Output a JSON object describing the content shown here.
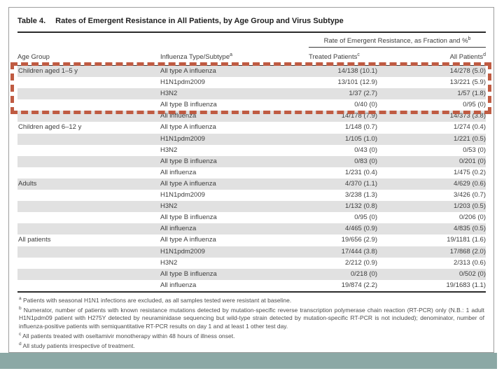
{
  "slide": {
    "accent_band_color": "#8ba8a5",
    "highlight_color": "#bf5b42"
  },
  "table": {
    "title_label": "Table 4.",
    "title_text": "Rates of Emergent Resistance in All Patients, by Age Group and Virus Subtype",
    "spanner": {
      "text": "Rate of Emergent Resistance, as Fraction and %",
      "sup": "b"
    },
    "columns": [
      {
        "label": "Age Group",
        "sup": ""
      },
      {
        "label": "Influenza Type/Subtype",
        "sup": "a"
      },
      {
        "label": "Treated Patients",
        "sup": "c"
      },
      {
        "label": "All Patients",
        "sup": "d"
      }
    ],
    "rows": [
      {
        "age_group": "Children aged 1–5 y",
        "subtype": "All type A influenza",
        "treated": "14/138 (10.1)",
        "all_patients": "14/278 (5.0)"
      },
      {
        "age_group": "",
        "subtype": "H1N1pdm2009",
        "treated": "13/101 (12.9)",
        "all_patients": "13/221 (5.9)"
      },
      {
        "age_group": "",
        "subtype": "H3N2",
        "treated": "1/37 (2.7)",
        "all_patients": "1/57 (1.8)"
      },
      {
        "age_group": "",
        "subtype": "All type B influenza",
        "treated": "0/40 (0)",
        "all_patients": "0/95 (0)"
      },
      {
        "age_group": "",
        "subtype": "All influenza",
        "treated": "14/178 (7.9)",
        "all_patients": "14/373 (3.8)"
      },
      {
        "age_group": "Children aged 6–12 y",
        "subtype": "All type A influenza",
        "treated": "1/148 (0.7)",
        "all_patients": "1/274 (0.4)"
      },
      {
        "age_group": "",
        "subtype": "H1N1pdm2009",
        "treated": "1/105 (1.0)",
        "all_patients": "1/221 (0.5)"
      },
      {
        "age_group": "",
        "subtype": "H3N2",
        "treated": "0/43 (0)",
        "all_patients": "0/53 (0)"
      },
      {
        "age_group": "",
        "subtype": "All type B influenza",
        "treated": "0/83 (0)",
        "all_patients": "0/201 (0)"
      },
      {
        "age_group": "",
        "subtype": "All influenza",
        "treated": "1/231 (0.4)",
        "all_patients": "1/475 (0.2)"
      },
      {
        "age_group": "Adults",
        "subtype": "All type A influenza",
        "treated": "4/370 (1.1)",
        "all_patients": "4/629 (0.6)"
      },
      {
        "age_group": "",
        "subtype": "H1N1pdm2009",
        "treated": "3/238 (1.3)",
        "all_patients": "3/426 (0.7)"
      },
      {
        "age_group": "",
        "subtype": "H3N2",
        "treated": "1/132 (0.8)",
        "all_patients": "1/203 (0.5)"
      },
      {
        "age_group": "",
        "subtype": "All type B influenza",
        "treated": "0/95 (0)",
        "all_patients": "0/206 (0)"
      },
      {
        "age_group": "",
        "subtype": "All influenza",
        "treated": "4/465 (0.9)",
        "all_patients": "4/835 (0.5)"
      },
      {
        "age_group": "All patients",
        "subtype": "All type A influenza",
        "treated": "19/656 (2.9)",
        "all_patients": "19/1181 (1.6)"
      },
      {
        "age_group": "",
        "subtype": "H1N1pdm2009",
        "treated": "17/444 (3.8)",
        "all_patients": "17/868 (2.0)"
      },
      {
        "age_group": "",
        "subtype": "H3N2",
        "treated": "2/212 (0.9)",
        "all_patients": "2/313 (0.6)"
      },
      {
        "age_group": "",
        "subtype": "All type B influenza",
        "treated": "0/218 (0)",
        "all_patients": "0/502 (0)"
      },
      {
        "age_group": "",
        "subtype": "All influenza",
        "treated": "19/874 (2.2)",
        "all_patients": "19/1683 (1.1)"
      }
    ],
    "highlight_rows": {
      "first": 0,
      "last": 3
    },
    "footnotes": [
      {
        "sup": "a",
        "text": "Patients with seasonal H1N1 infections are excluded, as all samples tested were resistant at baseline."
      },
      {
        "sup": "b",
        "text": "Numerator, number of patients with known resistance mutations detected by mutation-specific reverse transcription polymerase chain reaction (RT-PCR) only (N.B.: 1 adult H1N1pdm09 patient with H275Y detected by neuraminidase sequencing but wild-type strain detected by mutation-specific RT-PCR is not included); denominator, number of influenza-positive patients with semiquantitative RT-PCR results on day 1 and at least 1 other test day."
      },
      {
        "sup": "c",
        "text": "All patients treated with oseltamivir monotherapy within 48 hours of illness onset."
      },
      {
        "sup": "d",
        "text": "All study patients irrespective of treatment."
      }
    ]
  }
}
